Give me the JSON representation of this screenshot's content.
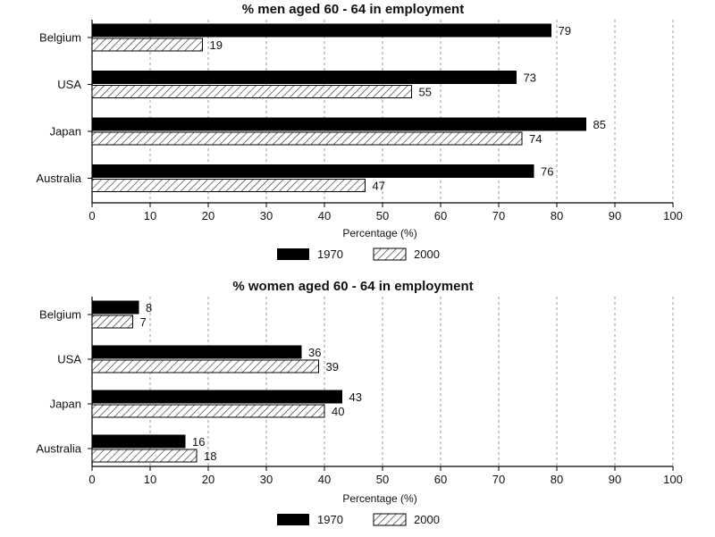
{
  "chart_data": [
    {
      "type": "bar",
      "orientation": "horizontal",
      "title": "% men aged 60 - 64 in employment",
      "xlabel": "Percentage (%)",
      "ylabel": "",
      "xlim": [
        0,
        100
      ],
      "xticks": [
        "0",
        "10",
        "20",
        "30",
        "40",
        "50",
        "60",
        "70",
        "80",
        "90",
        "100"
      ],
      "categories": [
        "Belgium",
        "USA",
        "Japan",
        "Australia"
      ],
      "series": [
        {
          "name": "1970",
          "values": [
            79,
            73,
            85,
            76
          ],
          "fill": "#000000"
        },
        {
          "name": "2000",
          "values": [
            19,
            55,
            74,
            47
          ],
          "fill": "hatch"
        }
      ],
      "legend_position": "bottom-center",
      "grid": "vertical dashed"
    },
    {
      "type": "bar",
      "orientation": "horizontal",
      "title": "% women aged 60 - 64 in employment",
      "xlabel": "Percentage (%)",
      "ylabel": "",
      "xlim": [
        0,
        100
      ],
      "xticks": [
        "0",
        "10",
        "20",
        "30",
        "40",
        "50",
        "60",
        "70",
        "80",
        "90",
        "100"
      ],
      "categories": [
        "Belgium",
        "USA",
        "Japan",
        "Australia"
      ],
      "series": [
        {
          "name": "1970",
          "values": [
            8,
            36,
            43,
            16
          ],
          "fill": "#000000"
        },
        {
          "name": "2000",
          "values": [
            7,
            39,
            40,
            18
          ],
          "fill": "hatch"
        }
      ],
      "legend_position": "bottom-center",
      "grid": "vertical dashed"
    }
  ]
}
